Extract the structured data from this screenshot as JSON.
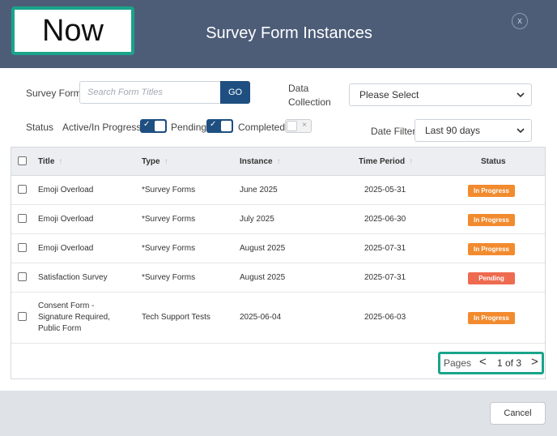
{
  "callout": {
    "label": "Now",
    "color": "#1aa48b"
  },
  "modal": {
    "title": "Survey Form Instances",
    "close_label": "x"
  },
  "filters": {
    "survey_form_label": "Survey Form",
    "search_placeholder": "Search Form Titles",
    "go_label": "GO",
    "data_collection_label_line1": "Data",
    "data_collection_label_line2": "Collection",
    "data_collection_value": "Please Select",
    "status_label": "Status",
    "active_label": "Active/In Progress",
    "active_on": true,
    "pending_label": "Pending",
    "pending_on": true,
    "completed_label": "Completed",
    "completed_on": false,
    "date_filter_label": "Date Filter",
    "date_filter_value": "Last 90 days"
  },
  "table": {
    "headers": {
      "title": "Title",
      "type": "Type",
      "instance": "Instance",
      "time_period": "Time Period",
      "status": "Status"
    },
    "rows": [
      {
        "title": "Emoji Overload",
        "type": "*Survey Forms",
        "instance": "June 2025",
        "time_period": "2025-05-31",
        "status": "In Progress"
      },
      {
        "title": "Emoji Overload",
        "type": "*Survey Forms",
        "instance": "July 2025",
        "time_period": "2025-06-30",
        "status": "In Progress"
      },
      {
        "title": "Emoji Overload",
        "type": "*Survey Forms",
        "instance": "August 2025",
        "time_period": "2025-07-31",
        "status": "In Progress"
      },
      {
        "title": "Satisfaction Survey",
        "type": "*Survey Forms",
        "instance": "August 2025",
        "time_period": "2025-07-31",
        "status": "Pending"
      },
      {
        "title_lines": [
          "Consent Form -",
          "Signature Required,",
          "Public Form"
        ],
        "type": "Tech Support Tests",
        "instance": "2025-06-04",
        "time_period": "2025-06-03",
        "status": "In Progress"
      }
    ]
  },
  "status_colors": {
    "In Progress": "#f28a2e",
    "Pending": "#ee6b4f"
  },
  "pagination": {
    "label": "Pages",
    "prev": "<",
    "info": "1 of 3",
    "next": ">"
  },
  "footer": {
    "cancel_label": "Cancel"
  }
}
